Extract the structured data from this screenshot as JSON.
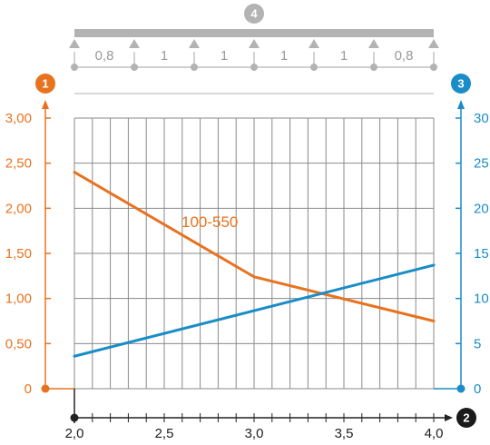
{
  "chart_data": {
    "type": "line",
    "x_ticks": [
      "2,0",
      "2,5",
      "3,0",
      "3,5",
      "4,0"
    ],
    "xlim": [
      2.0,
      4.0
    ],
    "x_minor_step": 0.1,
    "y_left": {
      "ticks": [
        "0",
        "0,50",
        "1,00",
        "1,50",
        "2,00",
        "2,50",
        "3,00"
      ],
      "ylim": [
        0,
        3.0
      ],
      "color": "#e8731f"
    },
    "y_right": {
      "ticks": [
        "0",
        "5",
        "10",
        "15",
        "20",
        "25",
        "30"
      ],
      "ylim": [
        0,
        30
      ],
      "color": "#1a8cc7"
    },
    "grid": true,
    "series": [
      {
        "name": "100-550",
        "axis": "left",
        "color": "#e8731f",
        "points": [
          [
            2.0,
            2.4
          ],
          [
            3.0,
            1.24
          ],
          [
            4.0,
            0.75
          ]
        ]
      },
      {
        "axis": "right",
        "color": "#1a8cc7",
        "points": [
          [
            2.0,
            3.6
          ],
          [
            4.0,
            13.7
          ]
        ]
      }
    ],
    "span_labels": [
      "0,8",
      "1",
      "1",
      "1",
      "1",
      "0,8"
    ],
    "badges": {
      "left_axis": "1",
      "x_axis": "2",
      "right_axis": "3",
      "span": "4"
    },
    "colors": {
      "grid": "#8a8a8a",
      "support": "#b3b3b3",
      "axis": "#222222",
      "badge_dark": "#1a1a1a"
    }
  }
}
